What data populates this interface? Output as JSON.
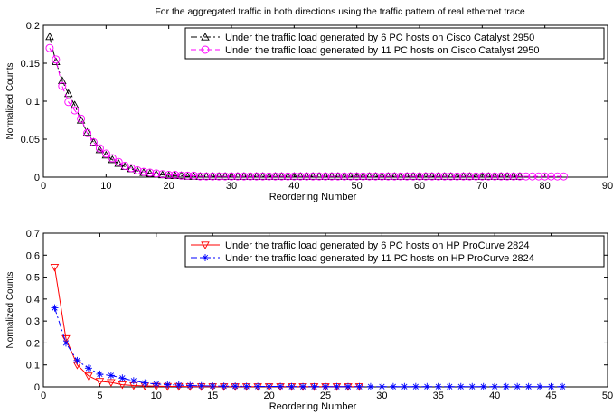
{
  "figure_title": "For the aggregated traffic in both directions using the traffic pattern of real ethernet trace",
  "chart_data": [
    {
      "type": "line",
      "title": "For the aggregated traffic in both directions using the traffic pattern of real ethernet trace",
      "xlabel": "Reordering Number",
      "ylabel": "Normalized Counts",
      "xlim": [
        0,
        90
      ],
      "ylim": [
        0,
        0.2
      ],
      "xticks": [
        0,
        10,
        20,
        30,
        40,
        50,
        60,
        70,
        80,
        90
      ],
      "xtick_labels": [
        "0",
        "10",
        "20",
        "30",
        "40",
        "50",
        "60",
        "70",
        "80",
        "90"
      ],
      "yticks": [
        0,
        0.05,
        0.1,
        0.15,
        0.2
      ],
      "ytick_labels": [
        "0",
        "0.05",
        "0.1",
        "0.15",
        "0.2"
      ],
      "grid": false,
      "legend_position": "top-right",
      "series": [
        {
          "name": "Under the traffic load generated by 6 PC hosts on Cisco Catalyst 2950",
          "color": "#000000",
          "line_style": "dashdot",
          "marker": "triangle-up",
          "x": [
            1,
            2,
            3,
            4,
            5,
            6,
            7,
            8,
            9,
            10,
            11,
            12,
            13,
            14,
            15,
            16,
            17,
            18,
            19,
            20,
            21,
            22,
            23,
            24,
            25,
            26,
            27,
            28,
            29,
            30,
            31,
            32,
            33,
            34,
            35,
            36,
            37,
            38,
            39,
            40,
            41,
            42,
            43,
            44,
            45,
            46,
            47,
            48,
            49,
            50,
            51,
            52,
            53,
            54,
            55,
            56,
            57,
            58,
            59,
            60,
            61,
            62,
            63,
            64,
            65,
            66,
            67,
            68,
            69,
            70,
            71,
            72,
            73,
            74,
            75,
            76
          ],
          "y": [
            0.185,
            0.152,
            0.127,
            0.11,
            0.095,
            0.075,
            0.059,
            0.046,
            0.036,
            0.029,
            0.023,
            0.018,
            0.014,
            0.011,
            0.008,
            0.006,
            0.005,
            0.004,
            0.003,
            0.002,
            0.002,
            0.002,
            0.001,
            0.001,
            0.001,
            0.001,
            0.001,
            0.001,
            0.001,
            0.001,
            0.001,
            0.001,
            0.001,
            0.001,
            0.001,
            0.001,
            0.001,
            0.001,
            0.001,
            0.001,
            0.001,
            0.001,
            0.001,
            0.001,
            0.001,
            0.001,
            0.001,
            0.001,
            0.001,
            0.001,
            0.001,
            0.001,
            0.001,
            0.001,
            0.001,
            0.001,
            0.001,
            0.001,
            0.001,
            0.001,
            0.001,
            0.001,
            0.001,
            0.001,
            0.001,
            0.001,
            0.001,
            0.001,
            0.001,
            0.001,
            0.001,
            0.001,
            0.001,
            0.001,
            0.001,
            0.001
          ]
        },
        {
          "name": "Under the traffic load generated by 11 PC hosts on Cisco Catalyst 2950",
          "color": "#ff00ff",
          "line_style": "dashed",
          "marker": "circle",
          "x": [
            1,
            2,
            3,
            4,
            5,
            6,
            7,
            8,
            9,
            10,
            11,
            12,
            13,
            14,
            15,
            16,
            17,
            18,
            19,
            20,
            21,
            22,
            23,
            24,
            25,
            26,
            27,
            28,
            29,
            30,
            31,
            32,
            33,
            34,
            35,
            36,
            37,
            38,
            39,
            40,
            41,
            42,
            43,
            44,
            45,
            46,
            47,
            48,
            49,
            50,
            51,
            52,
            53,
            54,
            55,
            56,
            57,
            58,
            59,
            60,
            61,
            62,
            63,
            64,
            65,
            66,
            67,
            68,
            69,
            70,
            71,
            72,
            73,
            74,
            75,
            76,
            77,
            78,
            79,
            80,
            81,
            82,
            83
          ],
          "y": [
            0.17,
            0.155,
            0.12,
            0.099,
            0.088,
            0.077,
            0.058,
            0.046,
            0.038,
            0.031,
            0.025,
            0.02,
            0.015,
            0.012,
            0.009,
            0.007,
            0.006,
            0.005,
            0.004,
            0.003,
            0.003,
            0.002,
            0.002,
            0.002,
            0.001,
            0.001,
            0.001,
            0.001,
            0.001,
            0.001,
            0.001,
            0.001,
            0.001,
            0.001,
            0.001,
            0.001,
            0.001,
            0.001,
            0.001,
            0.001,
            0.001,
            0.001,
            0.001,
            0.001,
            0.001,
            0.001,
            0.001,
            0.001,
            0.001,
            0.001,
            0.001,
            0.001,
            0.001,
            0.001,
            0.001,
            0.001,
            0.001,
            0.001,
            0.001,
            0.001,
            0.001,
            0.001,
            0.001,
            0.001,
            0.001,
            0.001,
            0.001,
            0.001,
            0.001,
            0.001,
            0.001,
            0.001,
            0.001,
            0.001,
            0.001,
            0.001,
            0.001,
            0.001,
            0.001,
            0.001,
            0.001,
            0.001,
            0.001
          ]
        }
      ]
    },
    {
      "type": "line",
      "title": "",
      "xlabel": "Reordering Number",
      "ylabel": "Normalized Counts",
      "xlim": [
        0,
        50
      ],
      "ylim": [
        0,
        0.7
      ],
      "xticks": [
        0,
        5,
        10,
        15,
        20,
        25,
        30,
        35,
        40,
        45,
        50
      ],
      "xtick_labels": [
        "0",
        "5",
        "10",
        "15",
        "20",
        "25",
        "30",
        "35",
        "40",
        "45",
        "50"
      ],
      "yticks": [
        0,
        0.1,
        0.2,
        0.3,
        0.4,
        0.5,
        0.6,
        0.7
      ],
      "ytick_labels": [
        "0",
        "0.1",
        "0.2",
        "0.3",
        "0.4",
        "0.5",
        "0.6",
        "0.7"
      ],
      "grid": false,
      "legend_position": "top-right",
      "series": [
        {
          "name": "Under the traffic load generated by 6 PC hosts on HP ProCurve 2824",
          "color": "#ff0000",
          "line_style": "solid",
          "marker": "triangle-down",
          "x": [
            1,
            2,
            3,
            4,
            5,
            6,
            7,
            8,
            9,
            10,
            11,
            12,
            13,
            14,
            15,
            16,
            17,
            18,
            19,
            20,
            21,
            22,
            23,
            24,
            25,
            26,
            27,
            28
          ],
          "y": [
            0.545,
            0.22,
            0.1,
            0.05,
            0.025,
            0.02,
            0.01,
            0.006,
            0.004,
            0.003,
            0.002,
            0.002,
            0.001,
            0.001,
            0.001,
            0.001,
            0.001,
            0.001,
            0.001,
            0.001,
            0.001,
            0.001,
            0.001,
            0.001,
            0.001,
            0.001,
            0.001,
            0.001
          ]
        },
        {
          "name": "Under the traffic load generated by 11 PC hosts on HP ProCurve 2824",
          "color": "#0000ff",
          "line_style": "dashdot",
          "marker": "asterisk",
          "x": [
            1,
            2,
            3,
            4,
            5,
            6,
            7,
            8,
            9,
            10,
            11,
            12,
            13,
            14,
            15,
            16,
            17,
            18,
            19,
            20,
            21,
            22,
            23,
            24,
            25,
            26,
            27,
            28,
            29,
            30,
            31,
            32,
            33,
            34,
            35,
            36,
            37,
            38,
            39,
            40,
            41,
            42,
            43,
            44,
            45,
            46
          ],
          "y": [
            0.36,
            0.2,
            0.12,
            0.085,
            0.058,
            0.052,
            0.04,
            0.028,
            0.018,
            0.013,
            0.01,
            0.008,
            0.006,
            0.005,
            0.004,
            0.003,
            0.003,
            0.002,
            0.002,
            0.002,
            0.002,
            0.001,
            0.001,
            0.001,
            0.001,
            0.001,
            0.001,
            0.001,
            0.001,
            0.001,
            0.001,
            0.001,
            0.001,
            0.001,
            0.001,
            0.001,
            0.001,
            0.001,
            0.001,
            0.001,
            0.001,
            0.001,
            0.001,
            0.001,
            0.001,
            0.001
          ]
        }
      ]
    }
  ]
}
